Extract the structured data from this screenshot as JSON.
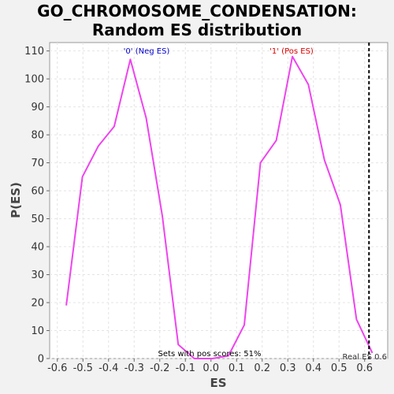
{
  "chart_data": {
    "type": "line",
    "title_line1": "GO_CHROMOSOME_CONDENSATION:",
    "title_line2": "Random ES distribution",
    "xlabel": "ES",
    "ylabel": "P(ES)",
    "xlim": [
      -0.63,
      0.69
    ],
    "ylim": [
      0,
      113
    ],
    "xticks": [
      -0.6,
      -0.5,
      -0.4,
      -0.3,
      -0.2,
      -0.1,
      0.0,
      0.1,
      0.2,
      0.3,
      0.4,
      0.5,
      0.6
    ],
    "xtick_labels": [
      "-0.6",
      "-0.5",
      "-0.4",
      "-0.3",
      "-0.2",
      "-0.1",
      "0.0",
      "0.1",
      "0.2",
      "0.3",
      "0.4",
      "0.5",
      "0.6"
    ],
    "yticks": [
      0,
      10,
      20,
      30,
      40,
      50,
      60,
      70,
      80,
      90,
      100,
      110
    ],
    "ytick_labels": [
      "0",
      "10",
      "20",
      "30",
      "40",
      "50",
      "60",
      "70",
      "80",
      "90",
      "100",
      "110"
    ],
    "grid": true,
    "series": [
      {
        "color": "#ee44ee",
        "x": [
          -0.565,
          -0.502,
          -0.44,
          -0.378,
          -0.315,
          -0.253,
          -0.19,
          -0.128,
          -0.065,
          0.005,
          0.068,
          0.13,
          0.193,
          0.255,
          0.318,
          0.38,
          0.443,
          0.505,
          0.568,
          0.63
        ],
        "y": [
          19,
          65,
          76,
          83,
          107,
          86,
          51,
          5,
          0,
          0,
          1,
          12,
          70,
          78,
          108,
          98,
          71,
          55,
          14,
          2
        ]
      }
    ],
    "real_es": 0.617,
    "annotations": {
      "neg_label": "'0' (Neg ES)",
      "pos_label": "'1' (Pos ES)",
      "neg_color": "#0000cc",
      "pos_color": "#dd0000",
      "pos_scores": "Sets with pos scores: 51%",
      "real_es_label": "Real ES 0.6"
    }
  }
}
